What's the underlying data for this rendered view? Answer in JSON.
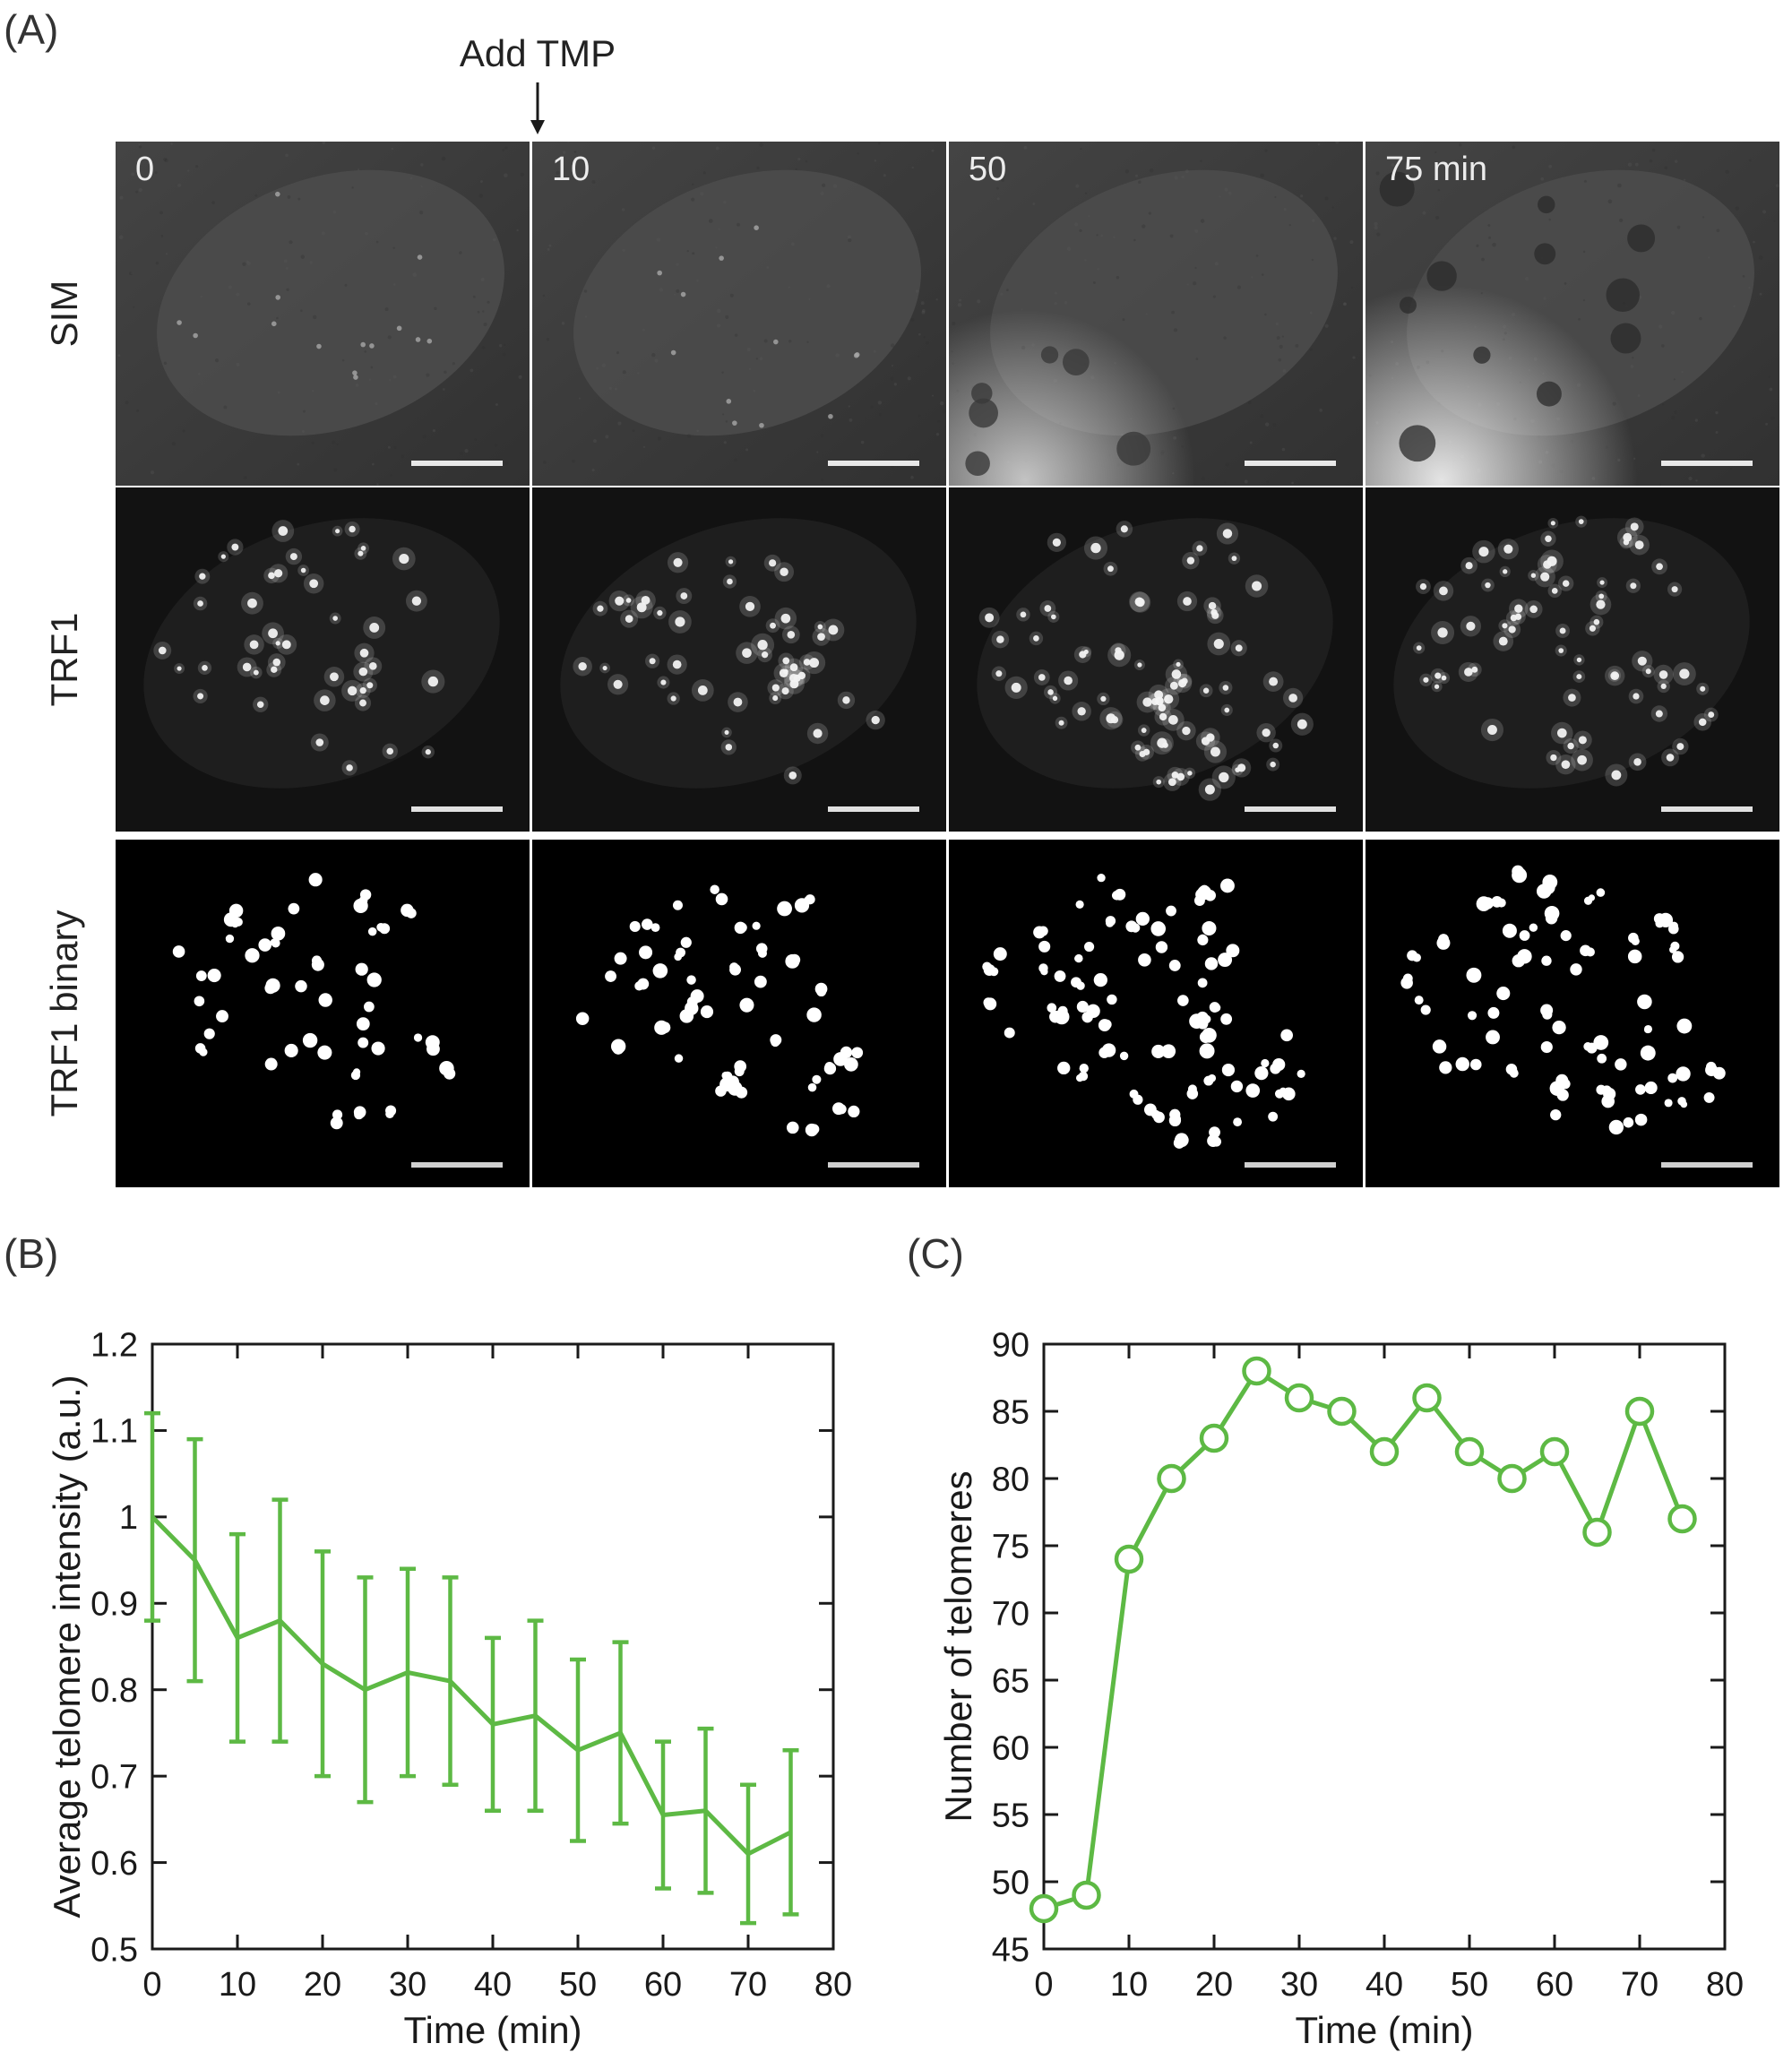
{
  "figure": {
    "panel_a_label": "(A)",
    "panel_b_label": "(B)",
    "panel_c_label": "(C)",
    "add_tmp_annotation": "Add TMP",
    "row_labels": [
      "SIM",
      "TRF1",
      "TRF1 binary"
    ],
    "time_labels": [
      "0",
      "10",
      "50",
      "75 min"
    ],
    "accent_green": "#5db944",
    "axis_color": "#1a1a1a"
  },
  "chart_data": [
    {
      "type": "line",
      "panel": "B",
      "title": "",
      "x": [
        0,
        5,
        10,
        15,
        20,
        25,
        30,
        35,
        40,
        45,
        50,
        55,
        60,
        65,
        70,
        75
      ],
      "series": [
        {
          "name": "Average telomere intensity",
          "values": [
            1.0,
            0.95,
            0.86,
            0.88,
            0.83,
            0.8,
            0.82,
            0.81,
            0.76,
            0.77,
            0.73,
            0.75,
            0.655,
            0.66,
            0.61,
            0.635
          ],
          "error": [
            0.12,
            0.14,
            0.12,
            0.14,
            0.13,
            0.13,
            0.12,
            0.12,
            0.1,
            0.11,
            0.105,
            0.105,
            0.085,
            0.095,
            0.08,
            0.095
          ]
        }
      ],
      "xlabel": "Time (min)",
      "ylabel": "Average telomere intensity (a.u.)",
      "xlim": [
        0,
        80
      ],
      "ylim": [
        0.5,
        1.2
      ],
      "xticks": [
        0,
        10,
        20,
        30,
        40,
        50,
        60,
        70,
        80
      ],
      "yticks": [
        0.5,
        0.6,
        0.7,
        0.8,
        0.9,
        1,
        1.1,
        1.2
      ],
      "color": "#5db944",
      "marker": "none",
      "error_bars": true,
      "grid": false,
      "legend": "none"
    },
    {
      "type": "line",
      "panel": "C",
      "title": "",
      "x": [
        0,
        5,
        10,
        15,
        20,
        25,
        30,
        35,
        40,
        45,
        50,
        55,
        60,
        65,
        70,
        75
      ],
      "series": [
        {
          "name": "Number of telomeres",
          "values": [
            48,
            49,
            74,
            80,
            83,
            88,
            86,
            85,
            82,
            86,
            82,
            80,
            82,
            76,
            85,
            77
          ]
        }
      ],
      "xlabel": "Time (min)",
      "ylabel": "Number of telomeres",
      "xlim": [
        0,
        80
      ],
      "ylim": [
        45,
        90
      ],
      "xticks": [
        0,
        10,
        20,
        30,
        40,
        50,
        60,
        70,
        80
      ],
      "yticks": [
        45,
        50,
        55,
        60,
        65,
        70,
        75,
        80,
        85,
        90
      ],
      "color": "#5db944",
      "marker": "circle",
      "error_bars": false,
      "grid": false,
      "legend": "none"
    }
  ]
}
